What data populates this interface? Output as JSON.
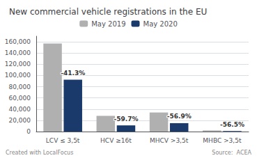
{
  "chart_data": {
    "type": "bar",
    "title": "New commercial vehicle registrations in the EU",
    "categories": [
      "LCV ≤ 3,5t",
      "HCV ≥16t",
      "MHCV >3,5t",
      "MHBC >3,5t"
    ],
    "series": [
      {
        "name": "May 2019",
        "color": "#b0b0b0",
        "values": [
          157000,
          28000,
          34000,
          2000
        ]
      },
      {
        "name": "May 2020",
        "color": "#1a3a6b",
        "values": [
          92500,
          11000,
          15000,
          900
        ]
      }
    ],
    "annotations": [
      {
        "text": "-41.3%",
        "category": "LCV ≤ 3,5t",
        "series": "May 2020"
      },
      {
        "text": "-59.7%",
        "category": "HCV ≥16t",
        "series": "May 2020"
      },
      {
        "text": "-56.9%",
        "category": "MHCV >3,5t",
        "series": "May 2020"
      },
      {
        "text": "-56.5%",
        "category": "MHBC >3,5t",
        "series": "May 2020"
      }
    ],
    "ylim": [
      0,
      170000
    ],
    "yticks": [
      0,
      {
        "value": 20000,
        "label": "20,000"
      },
      {
        "value": 40000,
        "label": "40,000"
      },
      {
        "value": 60000,
        "label": "60,000"
      },
      {
        "value": 80000,
        "label": "80,000"
      },
      {
        "value": 100000,
        "label": "100,000"
      },
      {
        "value": 120000,
        "label": "120,000"
      },
      {
        "value": 140000,
        "label": "140,000"
      },
      {
        "value": 160000,
        "label": "160,000"
      }
    ],
    "grid": true,
    "legend": "top",
    "footer_left": "Created with LocalFocus",
    "footer_right": "Source:  ACEA"
  }
}
